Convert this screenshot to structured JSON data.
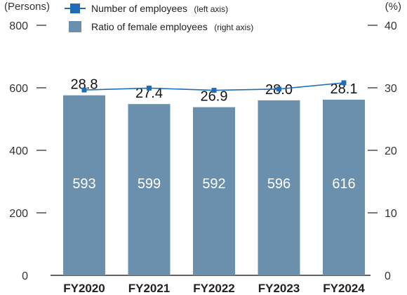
{
  "chart_data": {
    "type": "bar",
    "categories": [
      "FY2020",
      "FY2021",
      "FY2022",
      "FY2023",
      "FY2024"
    ],
    "series": [
      {
        "name": "Number of employees (left axis)",
        "axis": "left",
        "type": "line",
        "values": [
          593,
          599,
          592,
          596,
          616
        ]
      },
      {
        "name": "Ratio of female employees (right axis)",
        "axis": "right",
        "type": "bar",
        "values": [
          28.8,
          27.4,
          26.9,
          28.0,
          28.1
        ]
      }
    ],
    "left_axis": {
      "label": "(Persons)",
      "ylim": [
        0,
        800
      ],
      "ticks": [
        0,
        200,
        400,
        600,
        800
      ]
    },
    "right_axis": {
      "label": "(%)",
      "ylim": [
        0,
        40
      ],
      "ticks": [
        0,
        10,
        20,
        30,
        40
      ]
    },
    "legend": {
      "position": "top",
      "items": [
        {
          "label": "Number of employees",
          "sub": "(left axis)",
          "marker": "line-square"
        },
        {
          "label": "Ratio of female employees",
          "sub": "(right axis)",
          "marker": "box"
        }
      ]
    },
    "colors": {
      "bar": "#6a90ae",
      "line": "#1f6db8",
      "axis": "#333333"
    },
    "grid": false
  }
}
